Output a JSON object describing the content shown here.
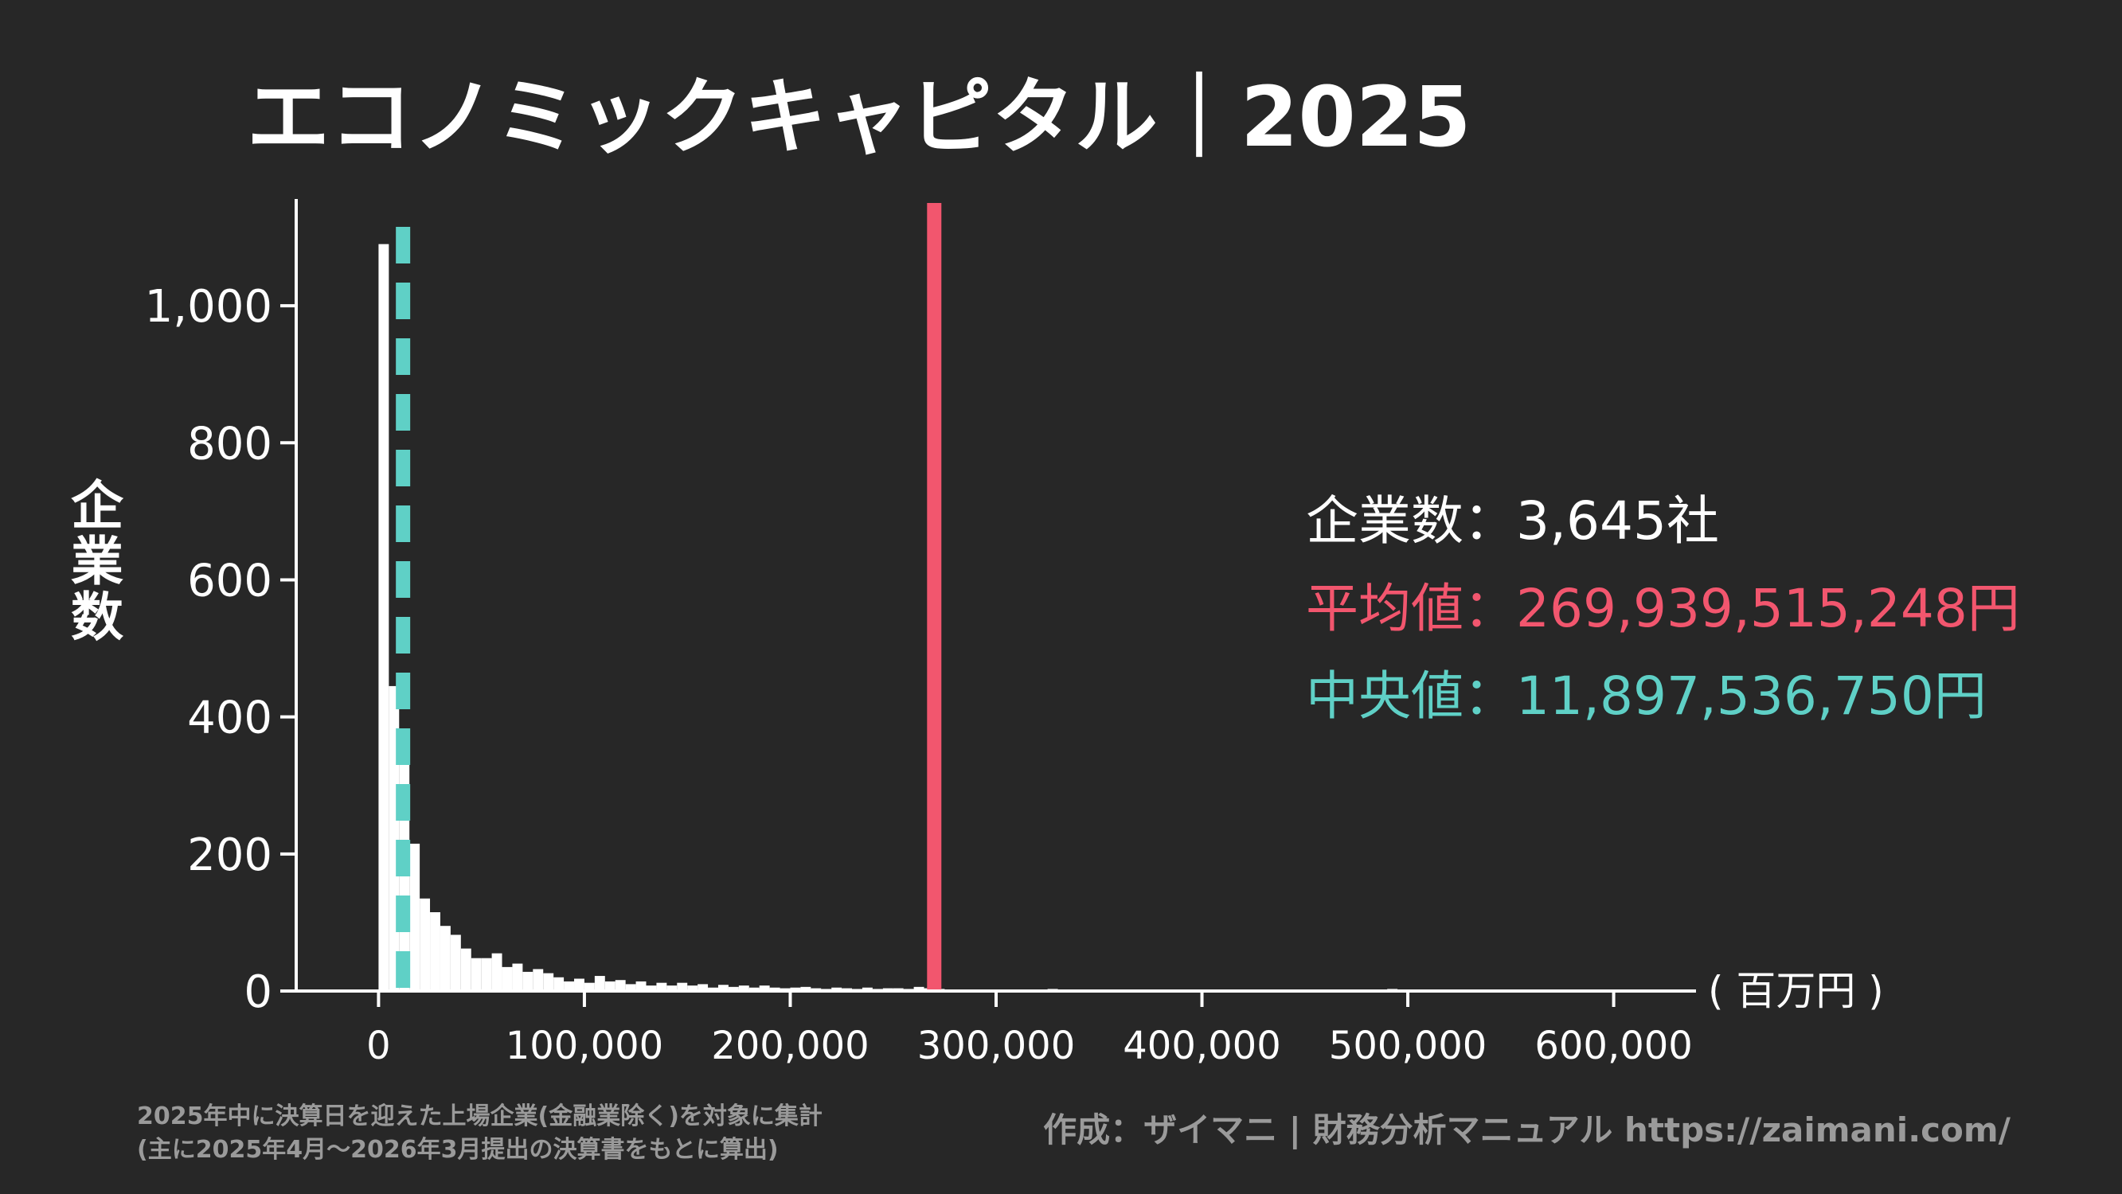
{
  "title": "エコノミックキャピタル｜2025",
  "stats": {
    "count_label": "企業数：",
    "count_value": "3,645社",
    "mean_label": "平均値：",
    "mean_value": "269,939,515,248円",
    "median_label": "中央値：",
    "median_value": "11,897,536,750円"
  },
  "footer": {
    "note_line1": "2025年中に決算日を迎えた上場企業(金融業除く)を対象に集計",
    "note_line2": "(主に2025年4月〜2026年3月提出の決算書をもとに算出)",
    "credit": "作成：ザイマニ | 財務分析マニュアル https://zaimani.com/"
  },
  "chart_data": {
    "type": "bar",
    "title": "エコノミックキャピタル｜2025",
    "xlabel": "( 百万円 )",
    "ylabel": "企業数",
    "xlim": [
      -40000,
      640000
    ],
    "ylim": [
      0,
      1150
    ],
    "xticks": [
      0,
      100000,
      200000,
      300000,
      400000,
      500000,
      600000
    ],
    "xtick_labels": [
      "0",
      "100,000",
      "200,000",
      "300,000",
      "400,000",
      "500,000",
      "600,000"
    ],
    "yticks": [
      0,
      200,
      400,
      600,
      800,
      1000
    ],
    "ytick_labels": [
      "0",
      "200",
      "400",
      "600",
      "800",
      "1,000"
    ],
    "bin_width": 5000,
    "bins": [
      [
        0,
        1090
      ],
      [
        5000,
        445
      ],
      [
        10000,
        360
      ],
      [
        15000,
        215
      ],
      [
        20000,
        135
      ],
      [
        25000,
        115
      ],
      [
        30000,
        95
      ],
      [
        35000,
        82
      ],
      [
        40000,
        62
      ],
      [
        45000,
        48
      ],
      [
        50000,
        48
      ],
      [
        55000,
        55
      ],
      [
        60000,
        35
      ],
      [
        65000,
        40
      ],
      [
        70000,
        28
      ],
      [
        75000,
        32
      ],
      [
        80000,
        26
      ],
      [
        85000,
        20
      ],
      [
        90000,
        14
      ],
      [
        95000,
        18
      ],
      [
        100000,
        12
      ],
      [
        105000,
        22
      ],
      [
        110000,
        14
      ],
      [
        115000,
        16
      ],
      [
        120000,
        10
      ],
      [
        125000,
        14
      ],
      [
        130000,
        8
      ],
      [
        135000,
        12
      ],
      [
        140000,
        8
      ],
      [
        145000,
        12
      ],
      [
        150000,
        8
      ],
      [
        155000,
        10
      ],
      [
        160000,
        5
      ],
      [
        165000,
        9
      ],
      [
        170000,
        6
      ],
      [
        175000,
        8
      ],
      [
        180000,
        5
      ],
      [
        185000,
        8
      ],
      [
        190000,
        5
      ],
      [
        195000,
        4
      ],
      [
        200000,
        5
      ],
      [
        205000,
        6
      ],
      [
        210000,
        4
      ],
      [
        215000,
        3
      ],
      [
        220000,
        5
      ],
      [
        225000,
        4
      ],
      [
        230000,
        3
      ],
      [
        235000,
        5
      ],
      [
        240000,
        3
      ],
      [
        245000,
        4
      ],
      [
        250000,
        4
      ],
      [
        255000,
        3
      ],
      [
        260000,
        6
      ],
      [
        265000,
        4
      ],
      [
        270000,
        3
      ],
      [
        275000,
        2
      ],
      [
        280000,
        2
      ],
      [
        285000,
        2
      ],
      [
        290000,
        2
      ],
      [
        295000,
        2
      ],
      [
        300000,
        2
      ],
      [
        305000,
        2
      ],
      [
        310000,
        2
      ],
      [
        315000,
        2
      ],
      [
        320000,
        2
      ],
      [
        325000,
        3
      ],
      [
        330000,
        2
      ],
      [
        335000,
        2
      ],
      [
        340000,
        1
      ],
      [
        345000,
        1
      ],
      [
        350000,
        1
      ],
      [
        355000,
        1
      ],
      [
        360000,
        1
      ],
      [
        365000,
        1
      ],
      [
        370000,
        1
      ],
      [
        375000,
        1
      ],
      [
        380000,
        1
      ],
      [
        385000,
        1
      ],
      [
        390000,
        1
      ],
      [
        395000,
        1
      ],
      [
        400000,
        1
      ],
      [
        405000,
        1
      ],
      [
        410000,
        1
      ],
      [
        415000,
        1
      ],
      [
        420000,
        1
      ],
      [
        425000,
        1
      ],
      [
        430000,
        1
      ],
      [
        435000,
        1
      ],
      [
        440000,
        1
      ],
      [
        445000,
        1
      ],
      [
        450000,
        1
      ],
      [
        455000,
        1
      ],
      [
        460000,
        1
      ],
      [
        465000,
        1
      ],
      [
        470000,
        1
      ],
      [
        475000,
        1
      ],
      [
        480000,
        1
      ],
      [
        485000,
        1
      ],
      [
        490000,
        3
      ],
      [
        495000,
        1
      ],
      [
        500000,
        1
      ],
      [
        505000,
        1
      ],
      [
        510000,
        1
      ],
      [
        515000,
        1
      ],
      [
        520000,
        1
      ],
      [
        525000,
        1
      ],
      [
        530000,
        1
      ],
      [
        535000,
        1
      ],
      [
        540000,
        1
      ],
      [
        545000,
        1
      ],
      [
        550000,
        1
      ],
      [
        555000,
        1
      ],
      [
        560000,
        1
      ],
      [
        565000,
        1
      ],
      [
        570000,
        1
      ],
      [
        575000,
        1
      ],
      [
        580000,
        1
      ],
      [
        585000,
        1
      ],
      [
        590000,
        1
      ],
      [
        595000,
        1
      ],
      [
        600000,
        1
      ],
      [
        605000,
        1
      ],
      [
        610000,
        1
      ]
    ],
    "lines": [
      {
        "name": "平均値",
        "x": 269939.515248,
        "style": "solid",
        "color": "#f2566e"
      },
      {
        "name": "中央値",
        "x": 11897.53675,
        "style": "dashed",
        "color": "#5fd0c6"
      }
    ],
    "colors": {
      "bars": "#ffffff",
      "axis": "#ffffff",
      "background": "#272727",
      "mean": "#f2566e",
      "median": "#5fd0c6"
    },
    "grid": false
  }
}
